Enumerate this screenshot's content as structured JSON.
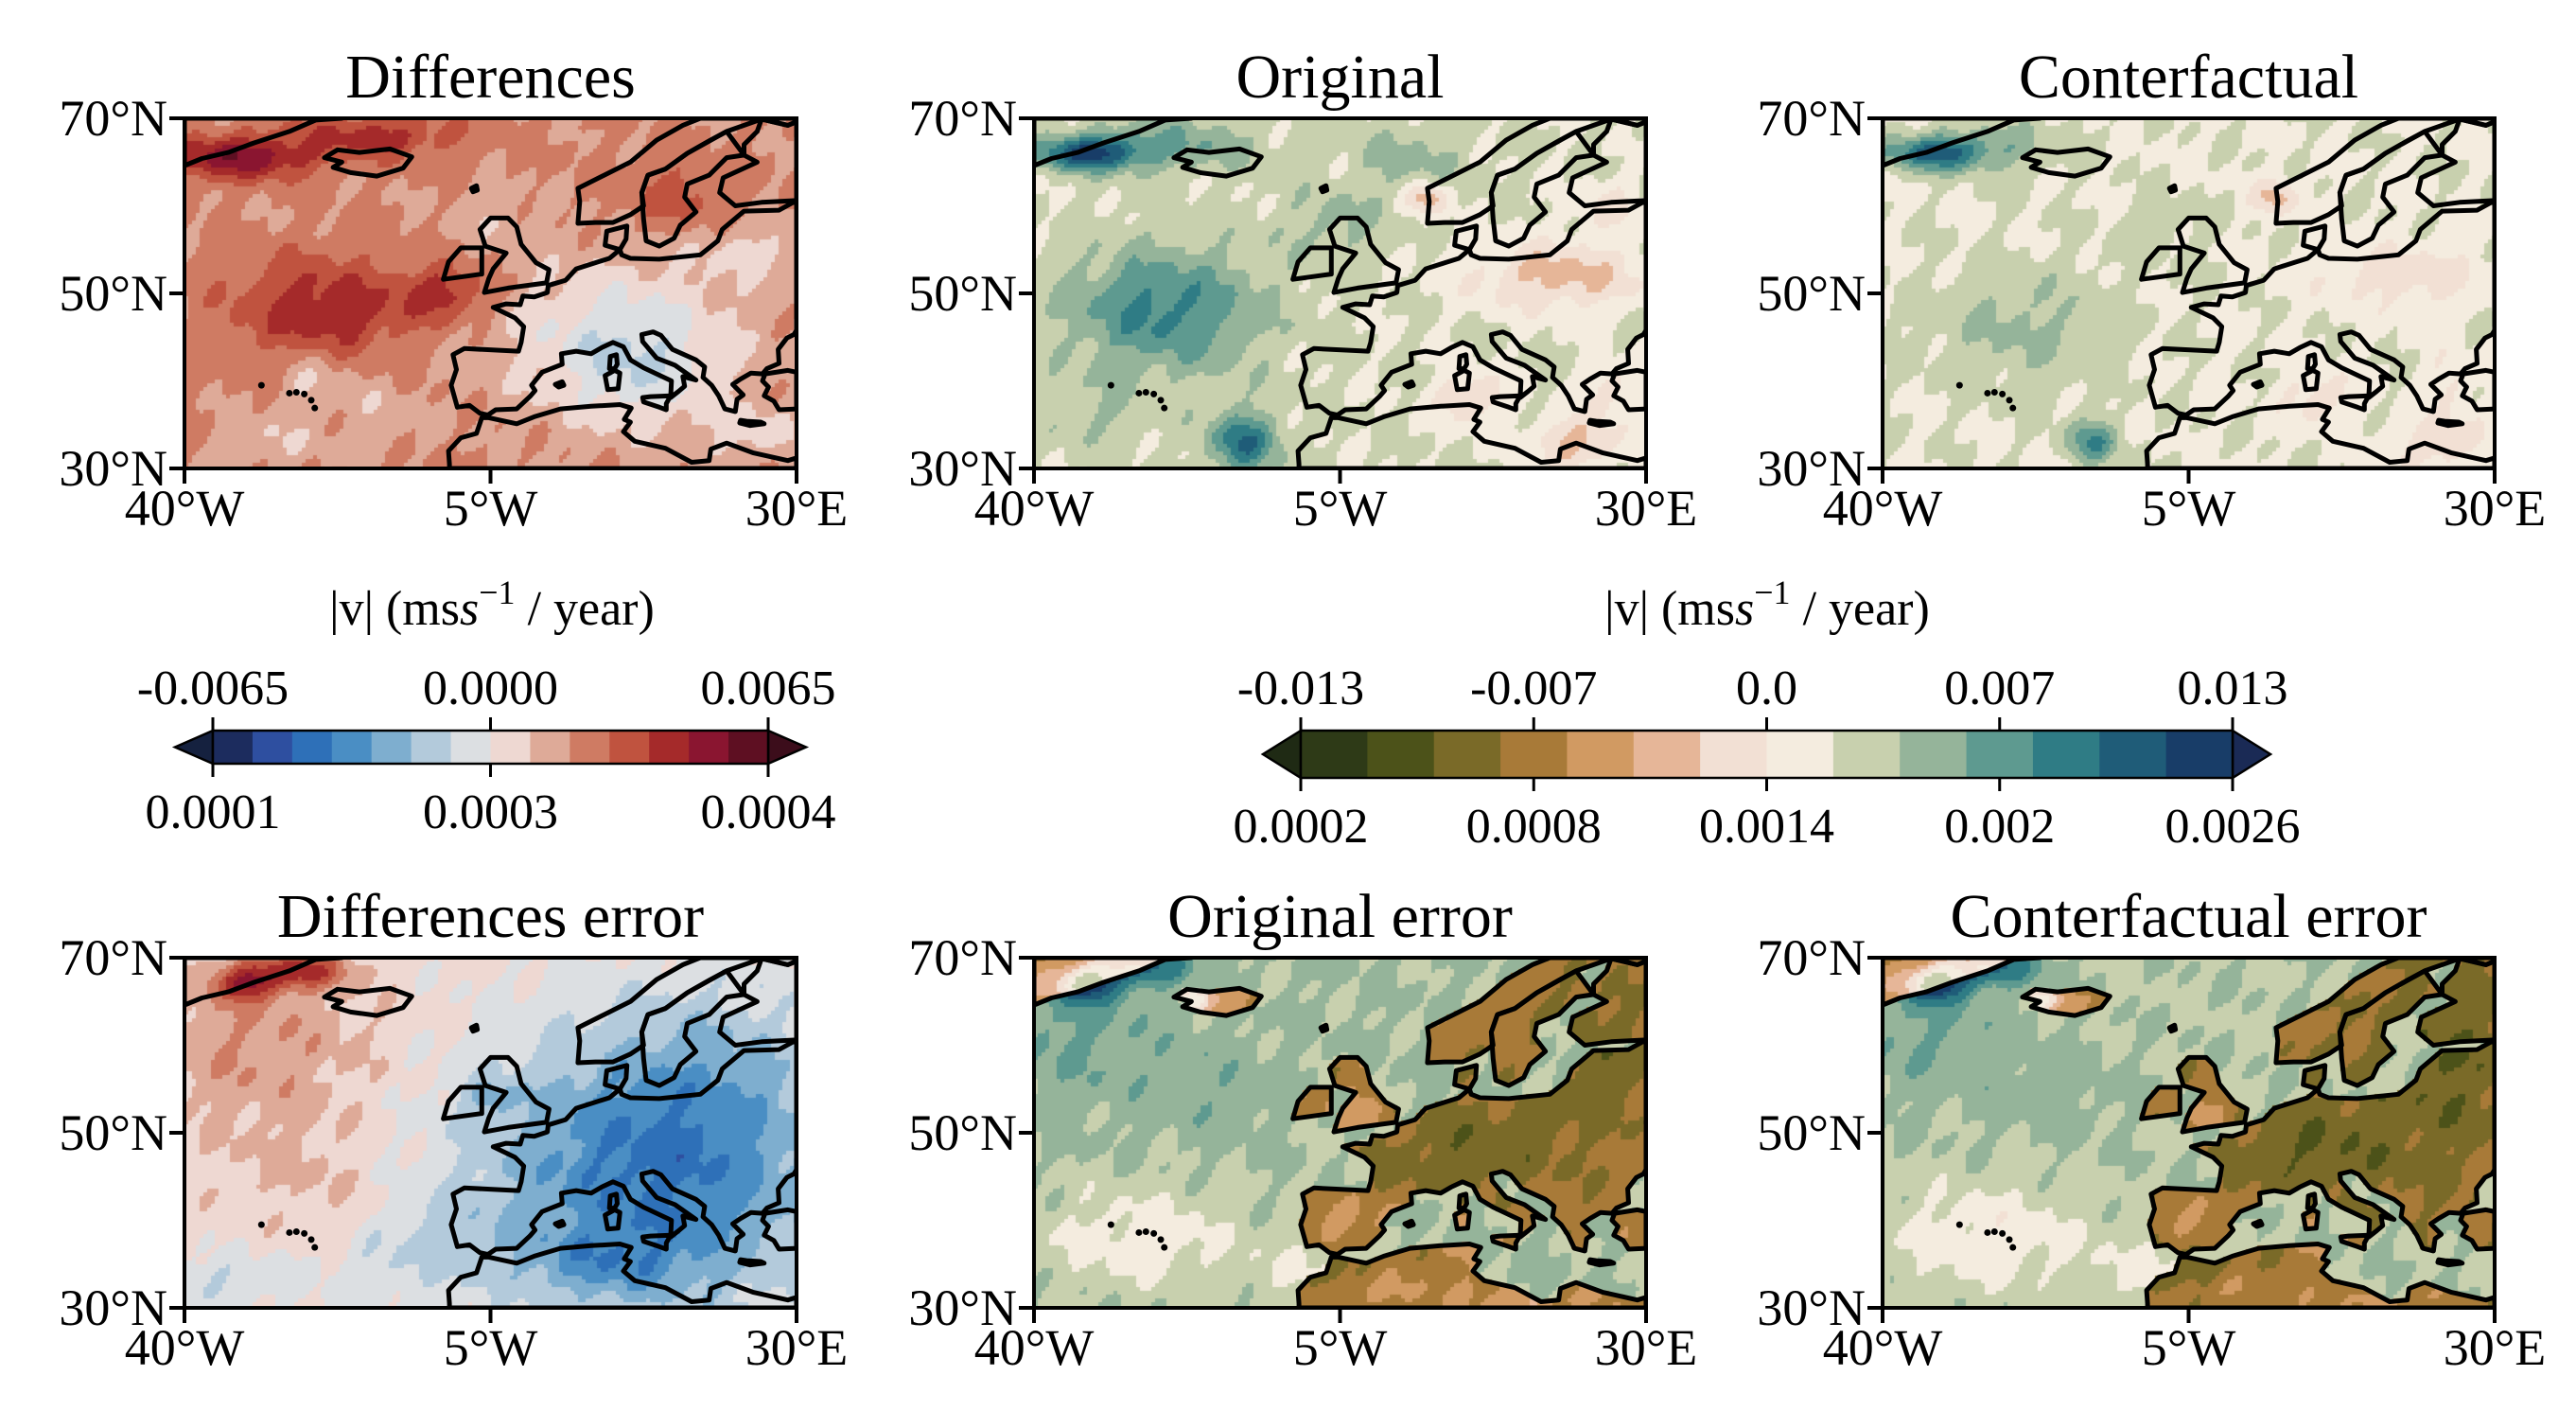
{
  "panels": [
    {
      "id": "diff",
      "title": "Differences",
      "cmap": "div",
      "pattern": "diff"
    },
    {
      "id": "orig",
      "title": "Original",
      "cmap": "seq",
      "pattern": "orig"
    },
    {
      "id": "cf",
      "title": "Conterfactual",
      "cmap": "seq",
      "pattern": "cf"
    },
    {
      "id": "diff_err",
      "title": "Differences error",
      "cmap": "div",
      "pattern": "diff_err"
    },
    {
      "id": "orig_err",
      "title": "Original error",
      "cmap": "seq",
      "pattern": "orig_err"
    },
    {
      "id": "cf_err",
      "title": "Conterfactual error",
      "cmap": "seq",
      "pattern": "cf_err"
    }
  ],
  "axes": {
    "lon_range": [
      -40,
      30
    ],
    "lat_range": [
      30,
      70
    ],
    "x_ticks": [
      {
        "value": -40,
        "label": "40°W"
      },
      {
        "value": -5,
        "label": "5°W"
      },
      {
        "value": 30,
        "label": "30°E"
      }
    ],
    "y_ticks": [
      {
        "value": 70,
        "label": "70°N"
      },
      {
        "value": 50,
        "label": "50°N"
      },
      {
        "value": 30,
        "label": "30°N"
      }
    ]
  },
  "colorbars": {
    "diverging": {
      "label_prefix": "|v| (ms",
      "label_exponent": "−1",
      "label_suffix": " / year)",
      "top_ticks": [
        "-0.0065",
        "0.0000",
        "0.0065"
      ],
      "bottom_ticks": [
        "0.0001",
        "0.0003",
        "0.0004"
      ],
      "arrow_left_color": "#15213f",
      "arrow_right_color": "#3c0d1b",
      "colors": [
        "#1c2c5e",
        "#2e4fa0",
        "#2e70b8",
        "#4a8ec4",
        "#7eaecf",
        "#b3cadb",
        "#dcdfe2",
        "#eed8d2",
        "#deaa98",
        "#cf7b63",
        "#c0533f",
        "#a52a2a",
        "#8a1530",
        "#5e0f22"
      ]
    },
    "sequential": {
      "label_prefix": "|v| (ms",
      "label_exponent": "−1",
      "label_suffix": " / year)",
      "top_ticks": [
        "-0.013",
        "-0.007",
        "0.0",
        "0.007",
        "0.013"
      ],
      "bottom_ticks": [
        "0.0002",
        "0.0008",
        "0.0014",
        "0.002",
        "0.0026"
      ],
      "arrow_left_color": "#1f2a14",
      "arrow_right_color": "#1a2a55",
      "colors": [
        "#2e3a17",
        "#4c5219",
        "#7a6a28",
        "#a87a38",
        "#d19a62",
        "#e6b698",
        "#f2e0d4",
        "#f4ecdf",
        "#c8d0ae",
        "#95b49a",
        "#5e9a90",
        "#2f7c85",
        "#1f5c78",
        "#183d68"
      ]
    }
  },
  "colors": {
    "frame": "#000000",
    "coast": "#000000"
  }
}
